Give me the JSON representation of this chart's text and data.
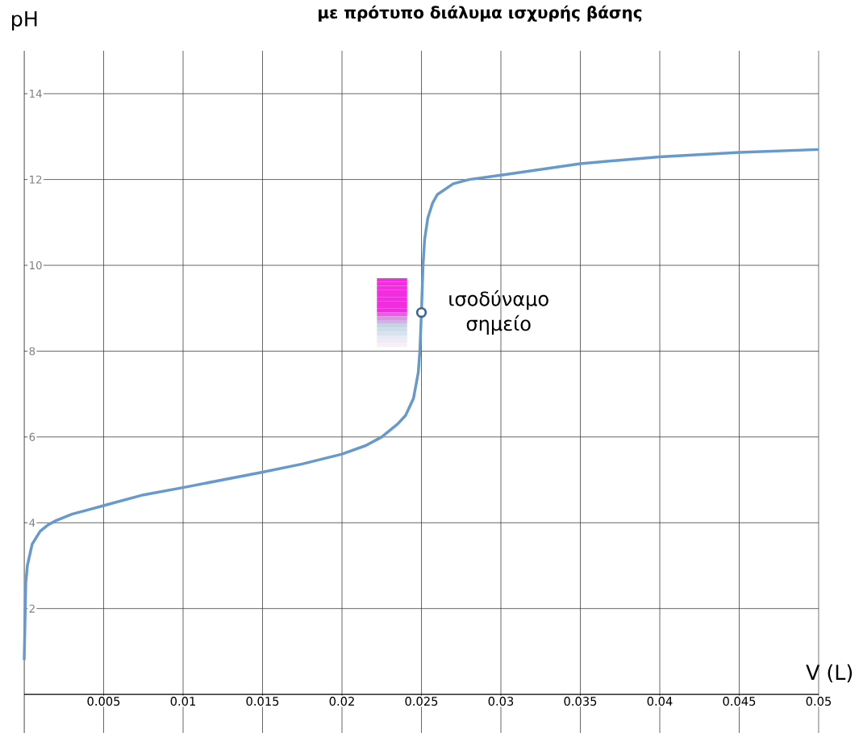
{
  "chart_data": {
    "type": "line",
    "title": "με πρότυπο διάλυμα ισχυρής βάσης",
    "xlabel": "V (L)",
    "ylabel": "pH",
    "xlim": [
      0,
      0.05
    ],
    "ylim": [
      -0.9,
      15
    ],
    "xticks": [
      0.005,
      0.01,
      0.015,
      0.02,
      0.025,
      0.03,
      0.035,
      0.04,
      0.045,
      0.05
    ],
    "yticks": [
      2,
      4,
      6,
      8,
      10,
      12,
      14
    ],
    "grid": true,
    "series": [
      {
        "color": "#6699cc",
        "marker": "none",
        "x": [
          0,
          0.0001,
          0.0002,
          0.0005,
          0.001,
          0.0015,
          0.002,
          0.003,
          0.004,
          0.005,
          0.0075,
          0.01,
          0.0125,
          0.015,
          0.0175,
          0.02,
          0.0215,
          0.0225,
          0.0235,
          0.024,
          0.0245,
          0.0248,
          0.0249,
          0.025,
          0.0251,
          0.0252,
          0.0254,
          0.0257,
          0.026,
          0.027,
          0.028,
          0.03,
          0.035,
          0.04,
          0.045,
          0.05
        ],
        "values": [
          0.8,
          2.6,
          3.0,
          3.5,
          3.8,
          3.95,
          4.05,
          4.2,
          4.3,
          4.4,
          4.65,
          4.82,
          5.0,
          5.18,
          5.37,
          5.6,
          5.8,
          6.0,
          6.3,
          6.5,
          6.9,
          7.5,
          8.0,
          8.9,
          10.0,
          10.6,
          11.1,
          11.45,
          11.65,
          11.9,
          12.0,
          12.1,
          12.37,
          12.53,
          12.63,
          12.7
        ]
      },
      {
        "type": "scatter",
        "color": "#3d6591",
        "marker": "circle",
        "x": [
          0.025
        ],
        "values": [
          8.9
        ]
      }
    ],
    "annotations": [
      {
        "text": "ισοδύναμο σημείο",
        "x": 0.025,
        "y": 8.9
      }
    ]
  }
}
